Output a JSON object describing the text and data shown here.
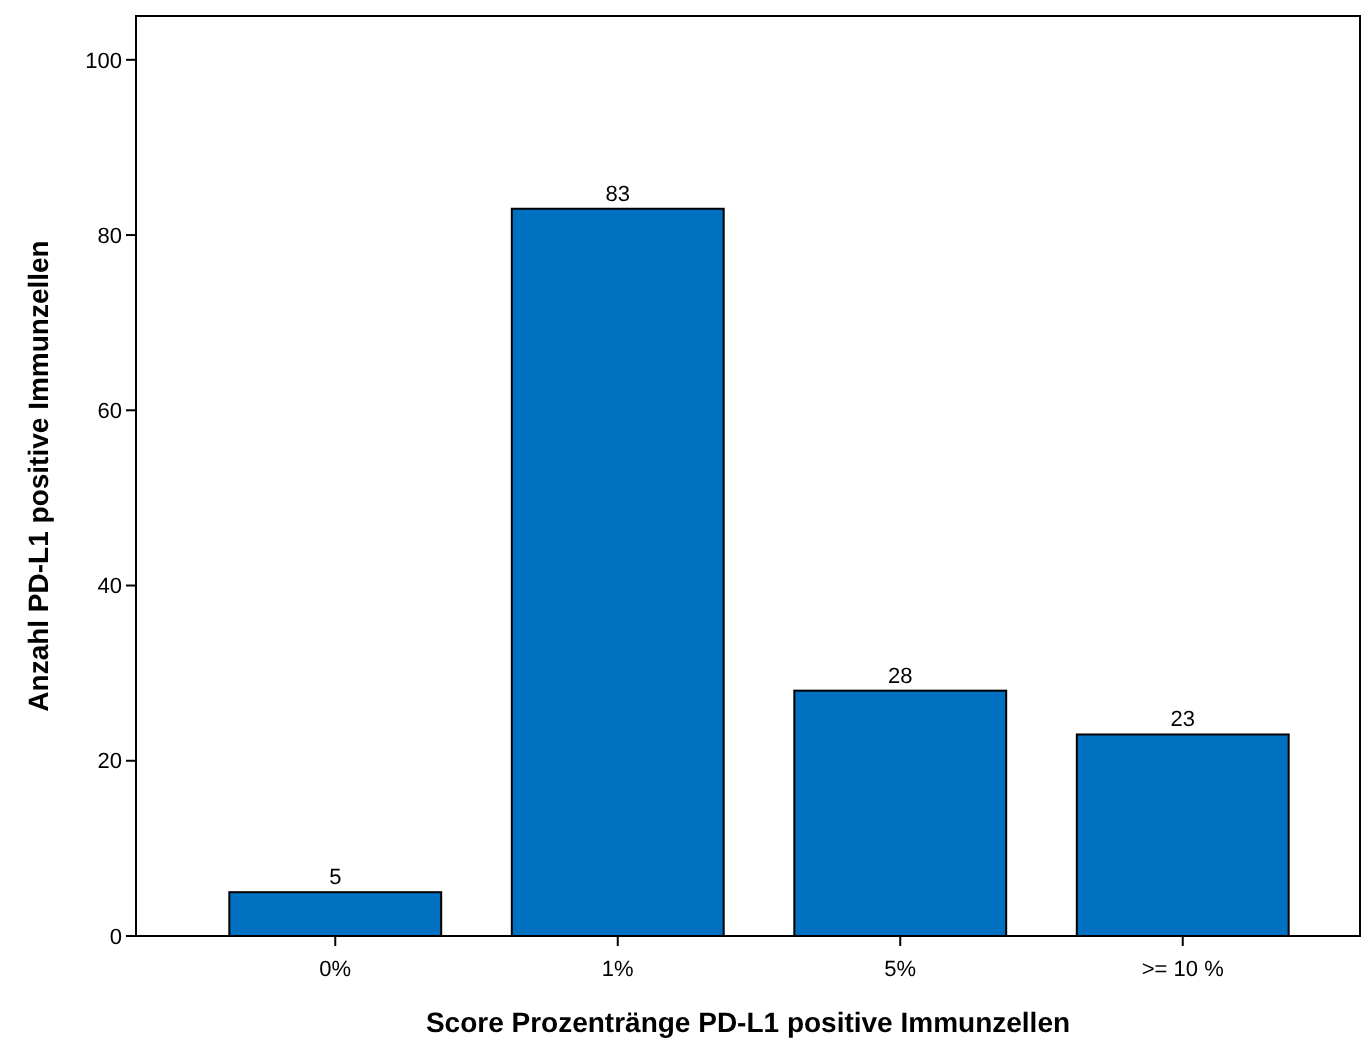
{
  "chart_data": {
    "type": "bar",
    "xlabel": "Score Prozentränge PD-L1 positive Immunzellen",
    "ylabel": "Anzahl PD-L1 positive Immunzellen",
    "categories": [
      "0%",
      "1%",
      "5%",
      ">= 10 %"
    ],
    "values": [
      5,
      83,
      28,
      23
    ],
    "color": "#0070c0",
    "ylim": [
      0,
      105
    ],
    "yticks": [
      0,
      20,
      40,
      60,
      80,
      100
    ],
    "grid": false,
    "data_labels": true
  }
}
